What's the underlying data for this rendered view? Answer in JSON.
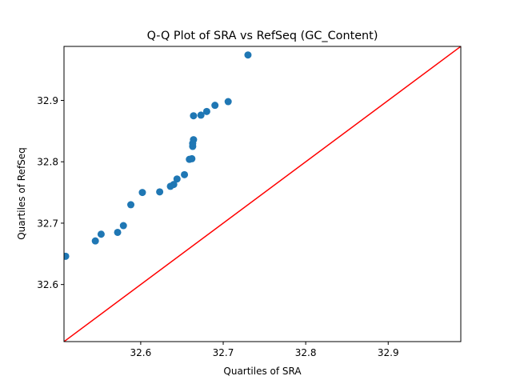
{
  "chart_data": {
    "type": "scatter",
    "title": "Q-Q Plot of SRA vs RefSeq (GC_Content)",
    "xlabel": "Quartiles of SRA",
    "ylabel": "Quartiles of RefSeq",
    "xlim": [
      32.507,
      32.988
    ],
    "ylim": [
      32.507,
      32.988
    ],
    "xticks": [
      32.6,
      32.7,
      32.8,
      32.9
    ],
    "yticks": [
      32.6,
      32.7,
      32.8,
      32.9
    ],
    "xtick_labels": [
      "32.6",
      "32.7",
      "32.8",
      "32.9"
    ],
    "ytick_labels": [
      "32.6",
      "32.7",
      "32.8",
      "32.9"
    ],
    "grid": false,
    "marker_color": "#1f77b4",
    "reference_line": {
      "type": "y=x",
      "color": "#ff0000"
    },
    "points": [
      {
        "x": 32.509,
        "y": 32.646
      },
      {
        "x": 32.545,
        "y": 32.671
      },
      {
        "x": 32.552,
        "y": 32.682
      },
      {
        "x": 32.572,
        "y": 32.685
      },
      {
        "x": 32.579,
        "y": 32.696
      },
      {
        "x": 32.588,
        "y": 32.73
      },
      {
        "x": 32.602,
        "y": 32.75
      },
      {
        "x": 32.623,
        "y": 32.751
      },
      {
        "x": 32.636,
        "y": 32.76
      },
      {
        "x": 32.64,
        "y": 32.763
      },
      {
        "x": 32.644,
        "y": 32.772
      },
      {
        "x": 32.653,
        "y": 32.779
      },
      {
        "x": 32.659,
        "y": 32.804
      },
      {
        "x": 32.662,
        "y": 32.805
      },
      {
        "x": 32.663,
        "y": 32.825
      },
      {
        "x": 32.663,
        "y": 32.83
      },
      {
        "x": 32.664,
        "y": 32.836
      },
      {
        "x": 32.664,
        "y": 32.875
      },
      {
        "x": 32.673,
        "y": 32.876
      },
      {
        "x": 32.68,
        "y": 32.882
      },
      {
        "x": 32.69,
        "y": 32.892
      },
      {
        "x": 32.706,
        "y": 32.898
      },
      {
        "x": 32.73,
        "y": 32.974
      }
    ]
  }
}
